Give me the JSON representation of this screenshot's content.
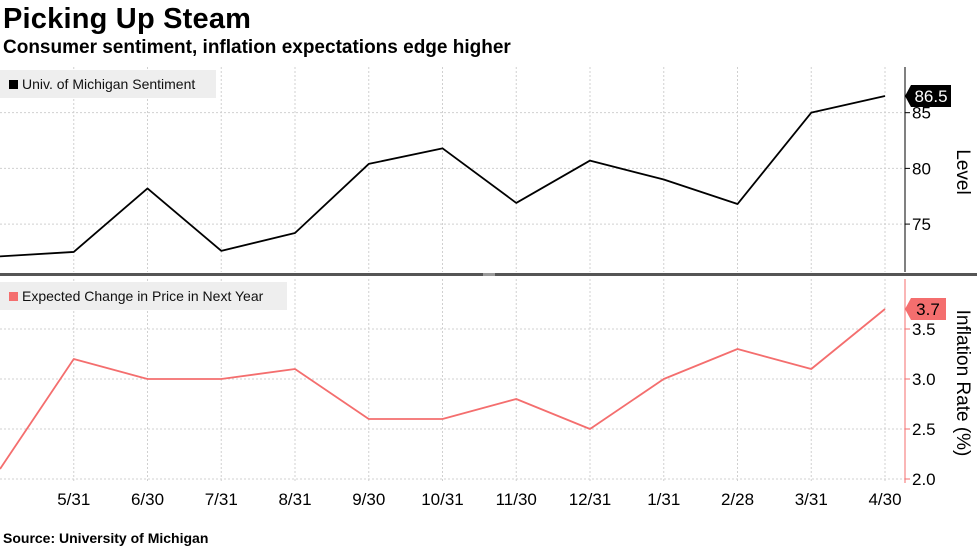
{
  "header": {
    "title": "Picking Up Steam",
    "subtitle": "Consumer sentiment, inflation expectations edge higher"
  },
  "footer": {
    "source": "Source: University of Michigan"
  },
  "colors": {
    "sentiment": "#000000",
    "inflation": "#f46e6e",
    "grid": "#d0d0d0",
    "divider": "#505050"
  },
  "chart_data": [
    {
      "type": "line",
      "panel": "top",
      "categories": [
        "4/30",
        "5/31",
        "6/30",
        "7/31",
        "8/31",
        "9/30",
        "10/31",
        "11/30",
        "12/31",
        "1/31",
        "2/28",
        "3/31",
        "4/30"
      ],
      "x_tick_labels": [
        "5/31",
        "6/30",
        "7/31",
        "8/31",
        "9/30",
        "10/31",
        "11/30",
        "12/31",
        "1/31",
        "2/28",
        "3/31",
        "4/30"
      ],
      "series": [
        {
          "name": "Univ. of Michigan Sentiment",
          "values": [
            72.1,
            72.5,
            78.2,
            72.6,
            74.2,
            80.4,
            81.8,
            76.9,
            80.7,
            79.0,
            76.8,
            85.0,
            86.5
          ]
        }
      ],
      "last_value_label": "86.5",
      "ylabel": "Level",
      "yticks": [
        75,
        80,
        85
      ],
      "ylim": [
        70.7,
        89.1
      ],
      "legend": "top-left",
      "grid": true
    },
    {
      "type": "line",
      "panel": "bottom",
      "categories": [
        "4/30",
        "5/31",
        "6/30",
        "7/31",
        "8/31",
        "9/30",
        "10/31",
        "11/30",
        "12/31",
        "1/31",
        "2/28",
        "3/31",
        "4/30"
      ],
      "x_tick_labels": [
        "5/31",
        "6/30",
        "7/31",
        "8/31",
        "9/30",
        "10/31",
        "11/30",
        "12/31",
        "1/31",
        "2/28",
        "3/31",
        "4/30"
      ],
      "series": [
        {
          "name": "Expected Change in Price in Next Year",
          "values": [
            2.1,
            3.2,
            3.0,
            3.0,
            3.1,
            2.6,
            2.6,
            2.8,
            2.5,
            3.0,
            3.3,
            3.1,
            3.7
          ]
        }
      ],
      "last_value_label": "3.7",
      "ylabel": "Inflation Rate (%)",
      "yticks": [
        "2.0",
        "2.5",
        "3.0",
        "3.5"
      ],
      "ylim": [
        1.96,
        4.0
      ],
      "legend": "top-left",
      "grid": true
    }
  ]
}
